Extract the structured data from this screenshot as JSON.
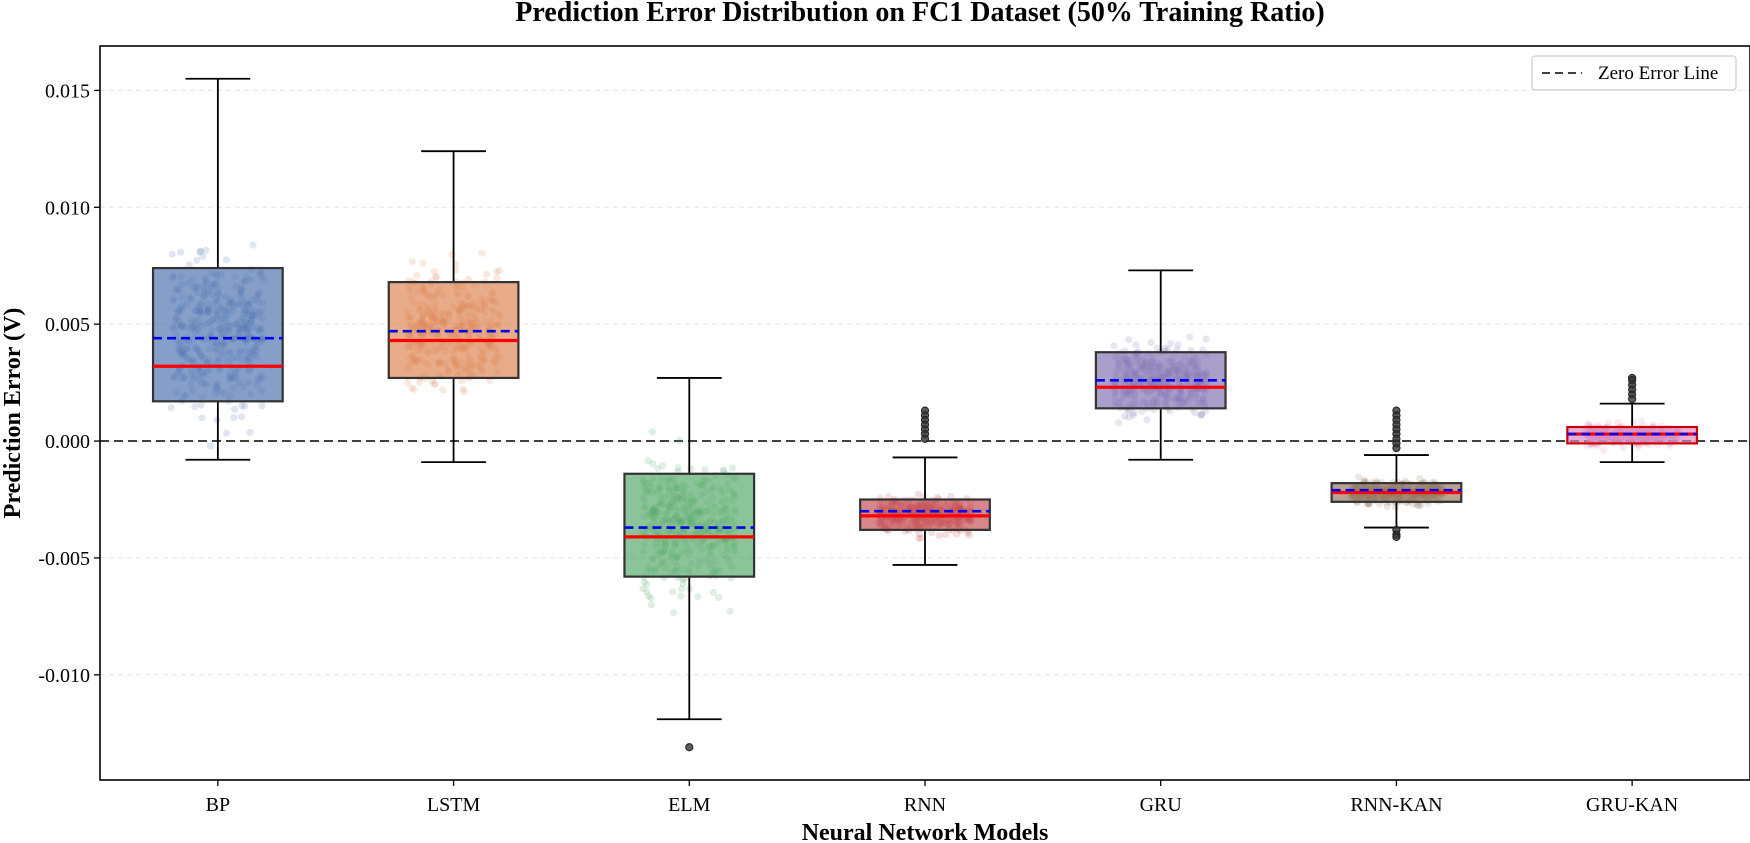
{
  "chart_data": {
    "type": "box",
    "title": "Prediction Error Distribution on FC1 Dataset (50% Training Ratio)",
    "xlabel": "Neural Network Models",
    "ylabel": "Prediction Error (V)",
    "ylim": [
      -0.0145,
      0.0169
    ],
    "yticks": [
      0.015,
      0.01,
      0.005,
      0.0,
      -0.005,
      -0.01
    ],
    "ytick_labels": [
      "0.015",
      "0.010",
      "0.005",
      "0.000",
      "-0.005",
      "-0.010"
    ],
    "grid": "horizontal dashed",
    "reference_line": {
      "y": 0,
      "label": "Zero Error Line",
      "style": "dashed",
      "color": "#404040"
    },
    "legend": {
      "position": "top-right",
      "entries": [
        "Zero Error Line"
      ]
    },
    "median_color": "#ff0000",
    "mean_color": "#0000ee",
    "categories": [
      "BP",
      "LSTM",
      "ELM",
      "RNN",
      "GRU",
      "RNN-KAN",
      "GRU-KAN"
    ],
    "series": [
      {
        "name": "BP",
        "color": "#4c72b0",
        "whisker_low": -0.0008,
        "q1": 0.0017,
        "median": 0.0032,
        "mean": 0.0044,
        "q3": 0.0074,
        "whisker_high": 0.0155,
        "outliers": []
      },
      {
        "name": "LSTM",
        "color": "#dd8452",
        "whisker_low": -0.0009,
        "q1": 0.0027,
        "median": 0.0043,
        "mean": 0.0047,
        "q3": 0.0068,
        "whisker_high": 0.0124,
        "outliers": []
      },
      {
        "name": "ELM",
        "color": "#55a868",
        "whisker_low": -0.0119,
        "q1": -0.0058,
        "median": -0.0041,
        "mean": -0.0037,
        "q3": -0.0014,
        "whisker_high": 0.0027,
        "outliers": [
          -0.0131
        ]
      },
      {
        "name": "RNN",
        "color": "#c44e52",
        "whisker_low": -0.0053,
        "q1": -0.0038,
        "median": -0.0032,
        "mean": -0.003,
        "q3": -0.0025,
        "whisker_high": -0.0007,
        "outliers": [
          0.0013,
          0.0011,
          0.0009,
          0.0007,
          0.0005,
          0.0003,
          0.0001
        ]
      },
      {
        "name": "GRU",
        "color": "#8172b3",
        "whisker_low": -0.0008,
        "q1": 0.0014,
        "median": 0.0023,
        "mean": 0.0026,
        "q3": 0.0038,
        "whisker_high": 0.0073,
        "outliers": []
      },
      {
        "name": "RNN-KAN",
        "color": "#937860",
        "whisker_low": -0.0037,
        "q1": -0.0026,
        "median": -0.0022,
        "mean": -0.0021,
        "q3": -0.0018,
        "whisker_high": -0.0006,
        "outliers": [
          0.0013,
          0.0011,
          0.0009,
          0.0007,
          0.0005,
          0.0003,
          0.0001,
          -0.0001,
          -0.0003,
          -0.0038,
          -0.004,
          -0.0041
        ]
      },
      {
        "name": "GRU-KAN",
        "color": "#da8bc3",
        "whisker_low": -0.0009,
        "q1": -0.0001,
        "median": 0.0003,
        "mean": 0.0003,
        "q3": 0.0006,
        "whisker_high": 0.0016,
        "outliers": [
          0.0027,
          0.0026,
          0.0024,
          0.0022,
          0.002,
          0.0018
        ]
      }
    ]
  }
}
